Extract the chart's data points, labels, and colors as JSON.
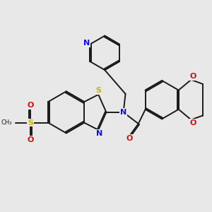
{
  "background_color": "#e8e8e8",
  "bond_color": "#1a1a1a",
  "n_color": "#1010dd",
  "o_color": "#cc1010",
  "s_color": "#c8b400",
  "bond_width": 1.4,
  "figsize": [
    3.0,
    3.0
  ],
  "dpi": 100,
  "xlim": [
    0,
    10
  ],
  "ylim": [
    0,
    10
  ]
}
